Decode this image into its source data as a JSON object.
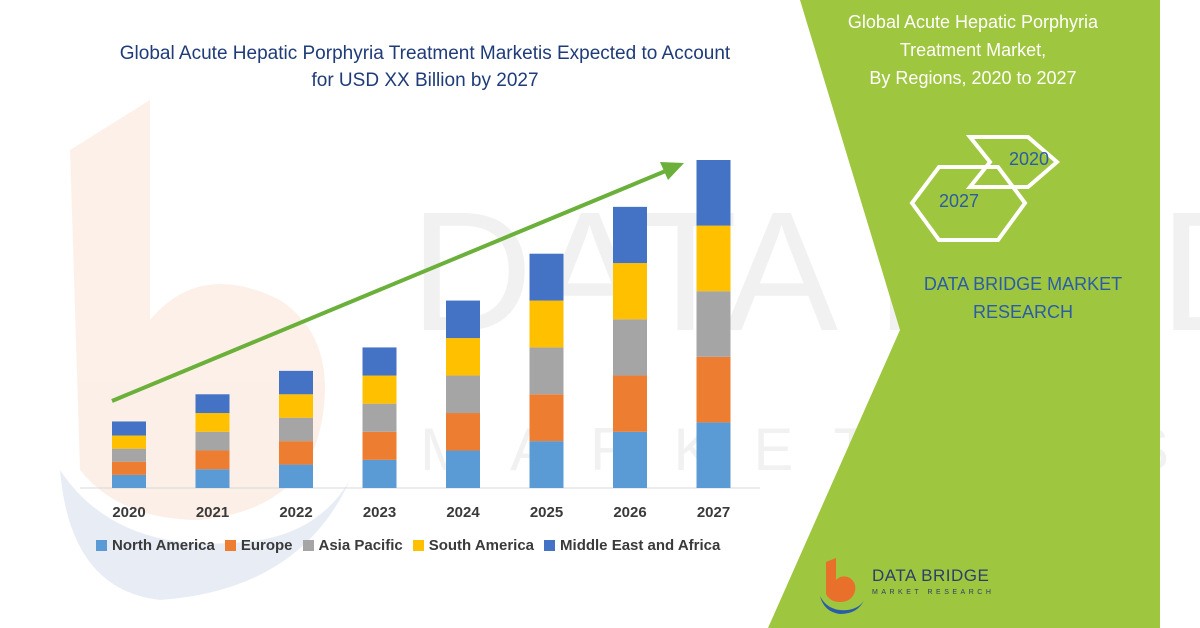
{
  "page": {
    "title_line1": "Global Acute Hepatic Porphyria Treatment Marketis Expected to Account",
    "title_line2": "for USD XX Billion by 2027"
  },
  "side_panel": {
    "title_line1": "Global Acute Hepatic Porphyria",
    "title_line2": "Treatment Market,",
    "title_line3": "By Regions, 2020 to 2027",
    "hex_start_label": "2027",
    "hex_end_label": "2020",
    "brand_line1": "DATA BRIDGE MARKET",
    "brand_line2": "RESEARCH",
    "panel_color": "#9fc63f"
  },
  "logo": {
    "name": "DATA BRIDGE",
    "tagline": "MARKET RESEARCH",
    "icon": "data-bridge-logo-icon"
  },
  "watermark": {
    "line1": "DATA BRIDGE",
    "line2": "MARKET RESEARCH"
  },
  "chart_data": {
    "type": "bar",
    "stacked": true,
    "categories": [
      "2020",
      "2021",
      "2022",
      "2023",
      "2024",
      "2025",
      "2026",
      "2027"
    ],
    "series": [
      {
        "name": "North America",
        "color": "#5b9bd5",
        "values": [
          1.4,
          2.0,
          2.5,
          3.0,
          4.0,
          5.0,
          6.0,
          7.0
        ]
      },
      {
        "name": "Europe",
        "color": "#ed7d31",
        "values": [
          1.4,
          2.0,
          2.5,
          3.0,
          4.0,
          5.0,
          6.0,
          7.0
        ]
      },
      {
        "name": "Asia Pacific",
        "color": "#a5a5a5",
        "values": [
          1.4,
          2.0,
          2.5,
          3.0,
          4.0,
          5.0,
          6.0,
          7.0
        ]
      },
      {
        "name": "South America",
        "color": "#ffc000",
        "values": [
          1.4,
          2.0,
          2.5,
          3.0,
          4.0,
          5.0,
          6.0,
          7.0
        ]
      },
      {
        "name": "Middle East and Africa",
        "color": "#4472c4",
        "values": [
          1.5,
          2.0,
          2.5,
          3.0,
          4.0,
          5.0,
          6.0,
          7.0
        ]
      }
    ],
    "ylim": [
      0,
      35
    ],
    "grid": false,
    "legend_position": "bottom",
    "trend_arrow_color": "#6ab03a"
  }
}
